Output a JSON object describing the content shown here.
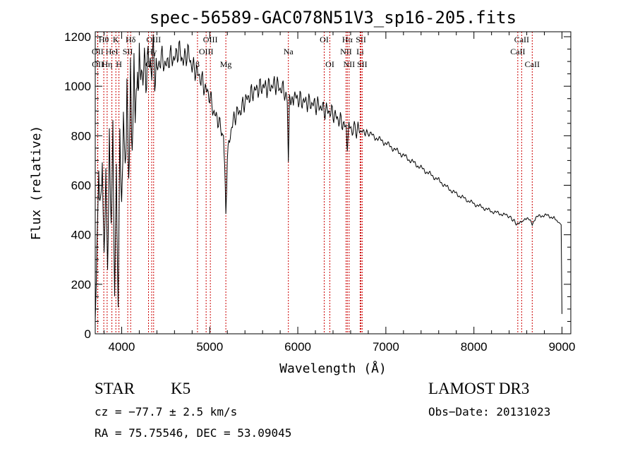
{
  "chart_data": {
    "type": "line",
    "title": "spec-56589-GAC078N51V3_sp16-205.fits",
    "xlabel": "Wavelength (Å)",
    "ylabel": "Flux (relative)",
    "xlim": [
      3700,
      9100
    ],
    "ylim": [
      0,
      1220
    ],
    "xticks": [
      4000,
      5000,
      6000,
      7000,
      8000,
      9000
    ],
    "yticks": [
      0,
      200,
      400,
      600,
      800,
      1000,
      1200
    ],
    "grid": false,
    "series": [
      {
        "name": "flux",
        "x": [
          3700,
          3720,
          3740,
          3760,
          3780,
          3800,
          3820,
          3840,
          3860,
          3880,
          3900,
          3920,
          3940,
          3960,
          3980,
          4000,
          4020,
          4040,
          4060,
          4080,
          4100,
          4120,
          4140,
          4160,
          4180,
          4200,
          4250,
          4300,
          4350,
          4400,
          4450,
          4500,
          4550,
          4600,
          4650,
          4700,
          4750,
          4800,
          4850,
          4900,
          4950,
          5000,
          5050,
          5100,
          5150,
          5170,
          5183,
          5200,
          5250,
          5300,
          5350,
          5400,
          5450,
          5500,
          5550,
          5600,
          5650,
          5700,
          5750,
          5800,
          5850,
          5880,
          5893,
          5905,
          5950,
          6000,
          6050,
          6100,
          6150,
          6200,
          6250,
          6300,
          6350,
          6400,
          6450,
          6500,
          6550,
          6563,
          6580,
          6650,
          6700,
          6750,
          6800,
          6900,
          7000,
          7100,
          7200,
          7300,
          7400,
          7500,
          7600,
          7700,
          7800,
          7900,
          8000,
          8100,
          8200,
          8300,
          8400,
          8498,
          8542,
          8600,
          8662,
          8700,
          8800,
          8900,
          8950,
          8990,
          9000
        ],
        "y": [
          50,
          350,
          650,
          500,
          700,
          300,
          650,
          250,
          760,
          450,
          780,
          150,
          650,
          100,
          830,
          480,
          900,
          640,
          980,
          620,
          1010,
          750,
          1040,
          900,
          1030,
          1080,
          1050,
          1090,
          1100,
          1060,
          1120,
          1080,
          1120,
          1110,
          1150,
          1100,
          1140,
          1080,
          1060,
          1030,
          990,
          960,
          890,
          860,
          800,
          700,
          480,
          720,
          840,
          890,
          900,
          940,
          960,
          980,
          990,
          1000,
          995,
          1000,
          1010,
          990,
          985,
          970,
          680,
          970,
          960,
          950,
          940,
          935,
          930,
          925,
          920,
          905,
          900,
          890,
          870,
          855,
          830,
          740,
          840,
          825,
          820,
          815,
          810,
          790,
          770,
          745,
          720,
          695,
          670,
          645,
          620,
          590,
          565,
          545,
          525,
          510,
          495,
          485,
          475,
          440,
          450,
          470,
          445,
          470,
          480,
          470,
          455,
          440,
          80
        ]
      }
    ],
    "annotations": [
      {
        "label": "Hθ",
        "x": 3797,
        "row": 0
      },
      {
        "label": "OII",
        "x": 3727,
        "row": 1
      },
      {
        "label": "OII",
        "x": 3729,
        "row": 2
      },
      {
        "label": "K",
        "x": 3934,
        "row": 0
      },
      {
        "label": "HeI",
        "x": 3889,
        "row": 1
      },
      {
        "label": "Hη",
        "x": 3835,
        "row": 2
      },
      {
        "label": "Hδ",
        "x": 4102,
        "row": 0
      },
      {
        "label": "SII",
        "x": 4069,
        "row": 1
      },
      {
        "label": "H",
        "x": 3969,
        "row": 2
      },
      {
        "label": "OIII",
        "x": 4363,
        "row": 0
      },
      {
        "label": "Hγ",
        "x": 4341,
        "row": 1
      },
      {
        "label": "G",
        "x": 4305,
        "row": 2
      },
      {
        "label": "OIII",
        "x": 5007,
        "row": 0
      },
      {
        "label": "OIII",
        "x": 4959,
        "row": 1
      },
      {
        "label": "β",
        "x": 4861,
        "row": 2
      },
      {
        "label": "Mg",
        "x": 5183,
        "row": 2
      },
      {
        "label": "Na",
        "x": 5893,
        "row": 1
      },
      {
        "label": "OI",
        "x": 6300,
        "row": 0
      },
      {
        "label": "OI",
        "x": 6364,
        "row": 2
      },
      {
        "label": "Hα",
        "x": 6563,
        "row": 0
      },
      {
        "label": "NII",
        "x": 6548,
        "row": 1
      },
      {
        "label": "NII",
        "x": 6583,
        "row": 2
      },
      {
        "label": "SII",
        "x": 6717,
        "row": 0
      },
      {
        "label": "Li",
        "x": 6708,
        "row": 1
      },
      {
        "label": "SII",
        "x": 6731,
        "row": 2
      },
      {
        "label": "CaII",
        "x": 8542,
        "row": 0
      },
      {
        "label": "CaII",
        "x": 8498,
        "row": 1
      },
      {
        "label": "CaII",
        "x": 8662,
        "row": 2
      }
    ]
  },
  "info": {
    "class": "STAR",
    "subclass": "K5",
    "survey": "LAMOST DR3",
    "cz": "cz = −77.7 ± 2.5 km/s",
    "obs_date": "Obs−Date: 20131023",
    "radec": "RA =  75.75546, DEC =  53.09045"
  },
  "colors": {
    "spectrum": "#000000",
    "line_markers": "#cc0000"
  }
}
